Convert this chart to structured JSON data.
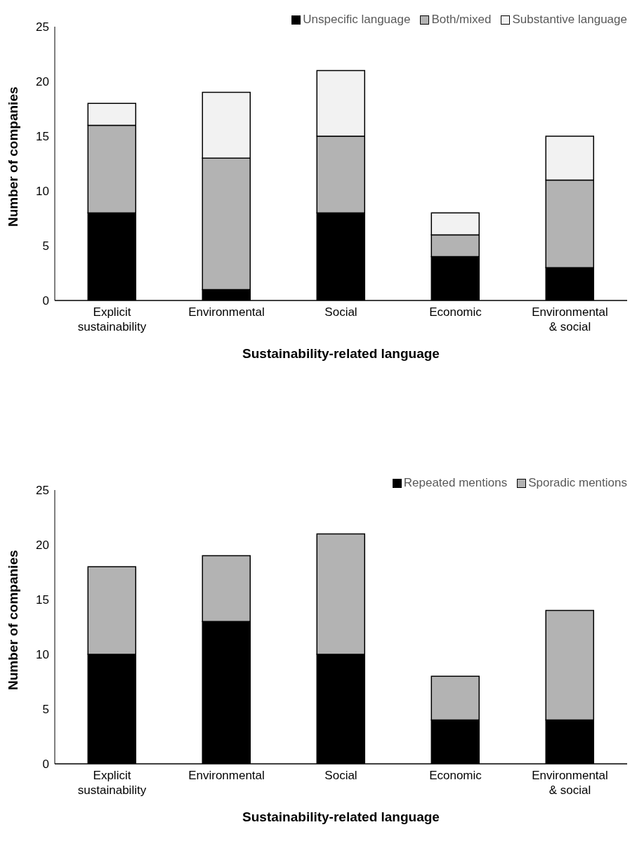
{
  "chart_data": [
    {
      "type": "bar",
      "stacked": true,
      "xlabel": "Sustainability-related language",
      "ylabel": "Number of companies",
      "categories": [
        "Explicit sustainability",
        "Environmental",
        "Social",
        "Economic",
        "Environmental & social"
      ],
      "series": [
        {
          "name": "Unspecific language",
          "color": "#000000",
          "values": [
            8,
            1,
            8,
            4,
            3
          ]
        },
        {
          "name": "Both/mixed",
          "color": "#b3b3b3",
          "values": [
            8,
            12,
            7,
            2,
            8
          ]
        },
        {
          "name": "Substantive language",
          "color": "#f2f2f2",
          "values": [
            2,
            6,
            6,
            2,
            4
          ]
        }
      ],
      "ylim": [
        0,
        25
      ],
      "yticks": [
        0,
        5,
        10,
        15,
        20,
        25
      ],
      "grid": false,
      "legend": "top right"
    },
    {
      "type": "bar",
      "stacked": true,
      "xlabel": "Sustainability-related language",
      "ylabel": "Number of companies",
      "categories": [
        "Explicit sustainability",
        "Environmental",
        "Social",
        "Economic",
        "Environmental & social"
      ],
      "series": [
        {
          "name": "Repeated mentions",
          "color": "#000000",
          "values": [
            10,
            13,
            10,
            4,
            4
          ]
        },
        {
          "name": "Sporadic mentions",
          "color": "#b3b3b3",
          "values": [
            8,
            6,
            11,
            4,
            10
          ]
        }
      ],
      "ylim": [
        0,
        25
      ],
      "yticks": [
        0,
        5,
        10,
        15,
        20,
        25
      ],
      "grid": false,
      "legend": "top right"
    }
  ]
}
